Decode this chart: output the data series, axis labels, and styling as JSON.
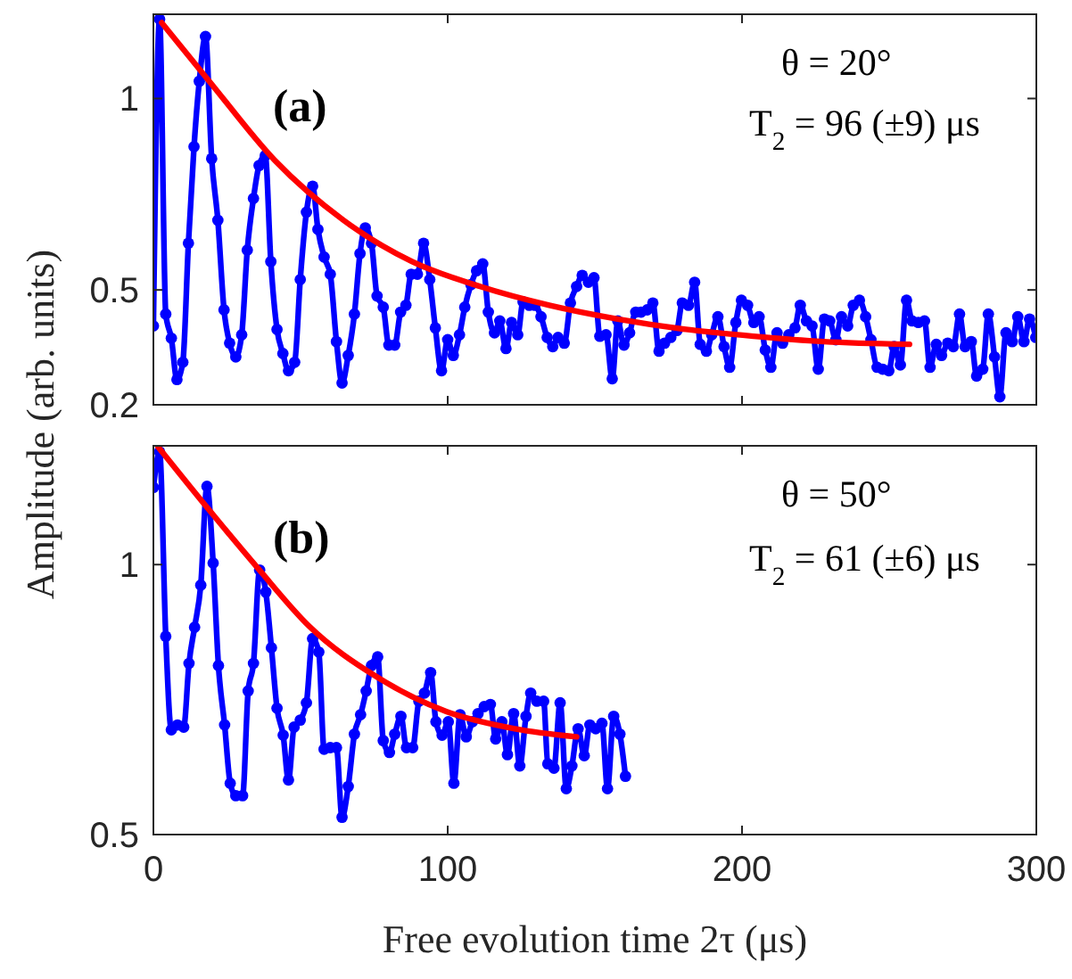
{
  "chart_data": [
    {
      "type": "line",
      "ylabel": "Amplitude (arb. units)",
      "xlim": [
        0,
        300
      ],
      "xticks": [
        0,
        100,
        200,
        300
      ],
      "ylim": [
        0.2,
        1.22
      ],
      "yticks": [
        0.2,
        0.5,
        1
      ],
      "tick_labels": "y",
      "annotations": [
        "(a)",
        "θ = 20°",
        "T$_{2}$ = 96 (±9) μs"
      ],
      "series": [
        {
          "color": "#0000ff",
          "marker": "circle",
          "x": [
            0,
            2.1,
            4.2,
            6.1,
            8,
            10,
            11.9,
            13.8,
            15.6,
            17.7,
            19.8,
            21.9,
            24,
            25.9,
            28,
            30,
            31.9,
            34,
            35.9,
            38,
            39.9,
            42,
            44,
            45.9,
            48,
            49.9,
            52,
            54.1,
            55.9,
            58,
            60.1,
            62.2,
            64.1,
            66.2,
            68.3,
            70.2,
            72,
            74.1,
            76,
            78.1,
            80,
            82,
            84,
            85.8,
            87.6,
            89.7,
            91.8,
            93.9,
            95.8,
            97.9,
            100,
            101.9,
            104,
            105.8,
            107.9,
            109.8,
            111.9,
            113.8,
            115.9,
            117.7,
            119.8,
            121.7,
            123.8,
            125.6,
            127.7,
            129.6,
            131.7,
            133.8,
            135.7,
            137.5,
            139.6,
            141.7,
            143.8,
            145.7,
            147.8,
            149.7,
            151.7,
            153.8,
            155.9,
            157.8,
            159.9,
            161.8,
            163.9,
            165.7,
            167.8,
            169.7,
            171.8,
            173.7,
            175.8,
            177.9,
            179.7,
            181.8,
            183.9,
            185.8,
            187.9,
            189.7,
            191.8,
            193.9,
            195.8,
            197.9,
            199.8,
            201.9,
            204,
            205.8,
            207.9,
            209.8,
            211.9,
            213.8,
            215.9,
            218,
            219.8,
            221.9,
            223.8,
            225.9,
            228,
            229.8,
            231.9,
            233.8,
            235.9,
            237.8,
            239.9,
            242,
            243.8,
            245.9,
            247.8,
            249.9,
            251.7,
            253.8,
            255.9,
            257.8,
            259.9,
            262,
            263.9,
            266,
            267.8,
            269.9,
            271.8,
            273.9,
            275.8,
            277.9,
            279.7,
            281.8,
            283.7,
            285.8,
            287.6,
            289.7,
            291.8,
            293.7,
            295.8,
            297.7,
            299.8
          ],
          "values": [
            0.406,
            1.207,
            0.437,
            0.374,
            0.266,
            0.311,
            0.622,
            0.874,
            1.045,
            1.162,
            0.843,
            0.682,
            0.448,
            0.361,
            0.325,
            0.383,
            0.604,
            0.739,
            0.825,
            0.851,
            0.574,
            0.397,
            0.334,
            0.289,
            0.311,
            0.527,
            0.703,
            0.771,
            0.658,
            0.586,
            0.541,
            0.365,
            0.257,
            0.329,
            0.437,
            0.595,
            0.662,
            0.622,
            0.484,
            0.455,
            0.356,
            0.356,
            0.442,
            0.46,
            0.541,
            0.541,
            0.622,
            0.527,
            0.401,
            0.289,
            0.37,
            0.329,
            0.383,
            0.455,
            0.514,
            0.55,
            0.568,
            0.442,
            0.388,
            0.419,
            0.347,
            0.415,
            0.383,
            0.469,
            0.46,
            0.46,
            0.43,
            0.376,
            0.352,
            0.376,
            0.361,
            0.466,
            0.509,
            0.538,
            0.52,
            0.532,
            0.379,
            0.383,
            0.268,
            0.419,
            0.356,
            0.388,
            0.442,
            0.442,
            0.448,
            0.466,
            0.34,
            0.361,
            0.376,
            0.394,
            0.466,
            0.46,
            0.52,
            0.358,
            0.34,
            0.383,
            0.43,
            0.352,
            0.298,
            0.415,
            0.473,
            0.46,
            0.415,
            0.43,
            0.343,
            0.298,
            0.388,
            0.361,
            0.383,
            0.401,
            0.46,
            0.419,
            0.406,
            0.293,
            0.424,
            0.419,
            0.37,
            0.43,
            0.406,
            0.46,
            0.473,
            0.43,
            0.37,
            0.298,
            0.293,
            0.289,
            0.352,
            0.304,
            0.473,
            0.419,
            0.415,
            0.419,
            0.298,
            0.358,
            0.329,
            0.361,
            0.352,
            0.437,
            0.352,
            0.365,
            0.275,
            0.293,
            0.437,
            0.325,
            0.221,
            0.388,
            0.365,
            0.43,
            0.365,
            0.424,
            0.376
          ]
        },
        {
          "color": "#ff0000",
          "marker": "none",
          "x": [
            2.8,
            19,
            41.3,
            64.6,
            87.9,
            111,
            134.5,
            157.8,
            181,
            204,
            227.7,
            256.9
          ],
          "values": [
            1.198,
            1.045,
            0.838,
            0.682,
            0.574,
            0.509,
            0.46,
            0.424,
            0.397,
            0.379,
            0.365,
            0.358
          ]
        }
      ]
    },
    {
      "type": "line",
      "xlabel": "Free evolution time 2τ (μs)",
      "xlim": [
        0,
        300
      ],
      "xticks": [
        0,
        100,
        200,
        300
      ],
      "ylim": [
        0.5,
        1.22
      ],
      "yticks": [
        0.5,
        1
      ],
      "annotations": [
        "(b)",
        "θ = 50°",
        "T$_{2}$ = 61 (±6) μs"
      ],
      "series": [
        {
          "color": "#0000ff",
          "marker": "circle",
          "x": [
            0,
            2.1,
            4.2,
            6.1,
            8.2,
            10.3,
            12.1,
            14,
            16.1,
            18.2,
            20.3,
            22.1,
            24.2,
            26.1,
            28,
            30.3,
            32.2,
            34,
            36.1,
            38.2,
            40.1,
            42,
            44.1,
            45.9,
            47.8,
            49.9,
            52,
            54.1,
            56.2,
            58,
            60.1,
            62.2,
            64.1,
            66.2,
            68.3,
            70.4,
            72.3,
            74.1,
            76.2,
            78.1,
            80.2,
            82,
            84.1,
            86,
            88.1,
            90.2,
            92.1,
            94.2,
            96,
            98.1,
            100.2,
            102.1,
            104.2,
            106.3,
            108.4,
            110.3,
            112.4,
            114.5,
            116.3,
            118.4,
            120.3,
            122.4,
            124.5,
            126.6,
            128.2,
            130.3,
            132.6,
            134,
            136.1,
            138.2,
            140.3,
            142.2,
            144.3,
            146.4,
            148.3,
            150.3,
            152.4,
            154.3,
            156.4,
            158.5,
            160.4
          ],
          "values": [
            1.143,
            1.209,
            0.867,
            0.694,
            0.703,
            0.699,
            0.817,
            0.884,
            0.962,
            1.145,
            1.003,
            0.813,
            0.703,
            0.595,
            0.572,
            0.572,
            0.766,
            0.817,
            0.99,
            0.949,
            0.846,
            0.734,
            0.684,
            0.601,
            0.699,
            0.712,
            0.744,
            0.863,
            0.838,
            0.658,
            0.661,
            0.661,
            0.532,
            0.589,
            0.686,
            0.722,
            0.766,
            0.813,
            0.829,
            0.674,
            0.652,
            0.686,
            0.719,
            0.661,
            0.661,
            0.747,
            0.762,
            0.8,
            0.709,
            0.684,
            0.709,
            0.595,
            0.722,
            0.681,
            0.709,
            0.724,
            0.737,
            0.741,
            0.677,
            0.709,
            0.648,
            0.724,
            0.627,
            0.719,
            0.762,
            0.747,
            0.747,
            0.631,
            0.623,
            0.744,
            0.585,
            0.627,
            0.696,
            0.646,
            0.703,
            0.696,
            0.706,
            0.585,
            0.719,
            0.686,
            0.608
          ]
        },
        {
          "color": "#ff0000",
          "marker": "none",
          "x": [
            1.6,
            17.9,
            35.4,
            52.9,
            76.2,
            99.5,
            122.8,
            143.8
          ],
          "values": [
            1.218,
            1.108,
            0.994,
            0.886,
            0.791,
            0.728,
            0.696,
            0.681
          ]
        }
      ]
    }
  ]
}
